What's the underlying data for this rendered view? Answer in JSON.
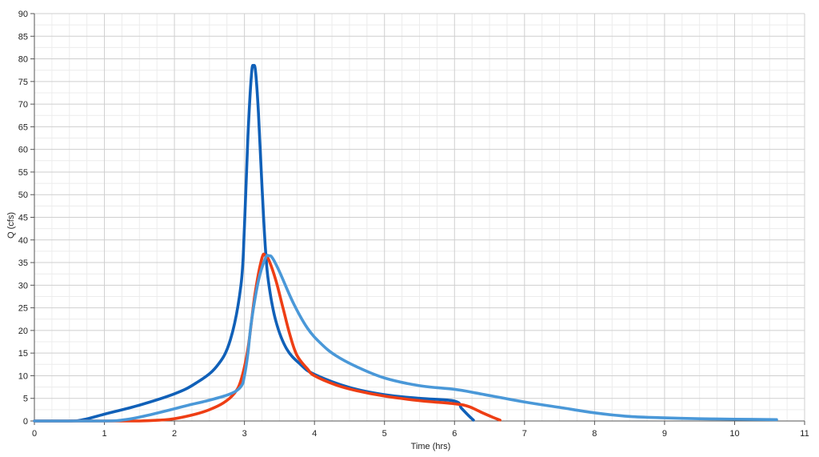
{
  "chart_data": {
    "type": "line",
    "xlabel": "Time (hrs)",
    "ylabel": "Q (cfs)",
    "xlim": [
      0,
      11
    ],
    "ylim": [
      0,
      90
    ],
    "xticks": [
      0,
      1,
      2,
      3,
      4,
      5,
      6,
      7,
      8,
      9,
      10,
      11
    ],
    "yticks": [
      0,
      5,
      10,
      15,
      20,
      25,
      30,
      35,
      40,
      45,
      50,
      55,
      60,
      65,
      70,
      75,
      80,
      85,
      90
    ],
    "grid": true,
    "series": [
      {
        "color": "#1060B8",
        "x": [
          0,
          0.5,
          0.7,
          1.0,
          1.5,
          2.0,
          2.3,
          2.6,
          2.8,
          2.95,
          3.0,
          3.05,
          3.1,
          3.13,
          3.16,
          3.2,
          3.25,
          3.3,
          3.35,
          3.45,
          3.6,
          3.8,
          4.0,
          4.5,
          5.0,
          5.5,
          6.0,
          6.1,
          6.2,
          6.27
        ],
        "y": [
          0,
          0,
          0.3,
          1.5,
          3.5,
          6.0,
          8.3,
          12.0,
          18.0,
          30.0,
          43.0,
          63.0,
          76.5,
          78.5,
          77.0,
          68.0,
          52.0,
          38.0,
          30.0,
          22.0,
          16.0,
          12.5,
          10.3,
          7.4,
          5.8,
          5.0,
          4.4,
          2.8,
          1.2,
          0.2
        ]
      },
      {
        "color": "#EE3E14",
        "x": [
          0,
          1.0,
          1.5,
          1.8,
          2.0,
          2.3,
          2.5,
          2.7,
          2.85,
          2.95,
          3.05,
          3.15,
          3.25,
          3.3,
          3.35,
          3.45,
          3.55,
          3.65,
          3.75,
          3.9,
          4.0,
          4.3,
          4.6,
          5.0,
          5.5,
          6.0,
          6.2,
          6.4,
          6.55,
          6.65
        ],
        "y": [
          0,
          0,
          0,
          0.2,
          0.5,
          1.5,
          2.5,
          4.0,
          6.0,
          9.0,
          16.0,
          28.0,
          36.0,
          36.5,
          35.5,
          31.0,
          25.0,
          19.0,
          14.5,
          11.5,
          10.0,
          8.0,
          6.7,
          5.5,
          4.5,
          3.8,
          3.2,
          1.8,
          0.8,
          0.2
        ]
      },
      {
        "color": "#4A98D8",
        "x": [
          0,
          1.0,
          1.3,
          1.6,
          2.0,
          2.2,
          2.5,
          2.8,
          2.95,
          3.0,
          3.05,
          3.1,
          3.2,
          3.3,
          3.35,
          3.4,
          3.5,
          3.7,
          3.9,
          4.1,
          4.3,
          4.6,
          5.0,
          5.5,
          6.0,
          6.3,
          7.0,
          7.5,
          8.0,
          8.5,
          9.0,
          9.5,
          10.0,
          10.6
        ],
        "y": [
          0,
          0,
          0.3,
          1.2,
          2.7,
          3.5,
          4.6,
          6.0,
          7.6,
          10.0,
          15.0,
          22.0,
          31.0,
          36.0,
          36.5,
          36.0,
          33.0,
          26.0,
          20.5,
          17.0,
          14.5,
          12.0,
          9.5,
          7.8,
          7.0,
          6.2,
          4.2,
          3.0,
          1.8,
          1.0,
          0.7,
          0.5,
          0.4,
          0.3
        ]
      }
    ]
  }
}
